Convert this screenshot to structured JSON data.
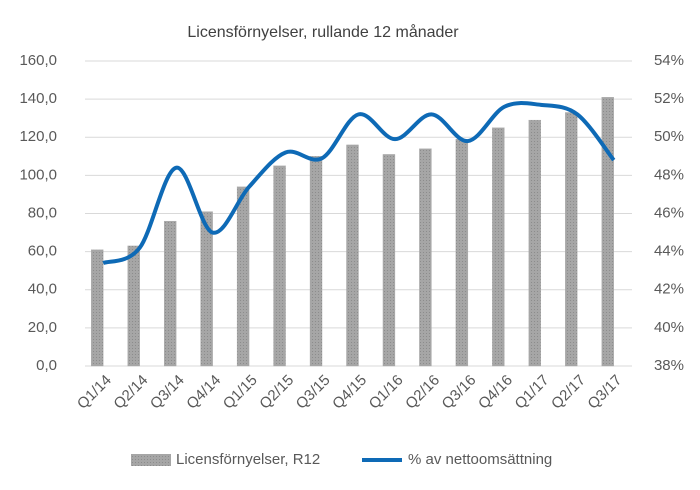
{
  "chart_data": {
    "type": "bar_line",
    "title": "Licensförnyelser, rullande 12 månader",
    "categories": [
      "Q1/14",
      "Q2/14",
      "Q3/14",
      "Q4/14",
      "Q1/15",
      "Q2/15",
      "Q3/15",
      "Q4/15",
      "Q1/16",
      "Q2/16",
      "Q3/16",
      "Q4/16",
      "Q1/17",
      "Q2/17",
      "Q3/17"
    ],
    "series": [
      {
        "name": "Licensförnyelser, R12",
        "type": "bar",
        "color": "#a6a6a6",
        "values": [
          61,
          63,
          76,
          81,
          94,
          105,
          110,
          116,
          111,
          114,
          119,
          125,
          129,
          133,
          141
        ]
      },
      {
        "name": "% av nettoomsättning",
        "type": "line",
        "axis": "y2",
        "color": "#0e6ab6",
        "values": [
          43.4,
          44.2,
          48.4,
          45.0,
          47.4,
          49.2,
          48.9,
          51.2,
          49.9,
          51.2,
          49.8,
          51.6,
          51.7,
          51.2,
          48.8
        ]
      }
    ],
    "ylim": [
      0,
      160
    ],
    "yticks": [
      {
        "value": 0,
        "label": "0,0"
      },
      {
        "value": 20,
        "label": "20,0"
      },
      {
        "value": 40,
        "label": "40,0"
      },
      {
        "value": 60,
        "label": "60,0"
      },
      {
        "value": 80,
        "label": "80,0"
      },
      {
        "value": 100,
        "label": "100,0"
      },
      {
        "value": 120,
        "label": "120,0"
      },
      {
        "value": 140,
        "label": "140,0"
      },
      {
        "value": 160,
        "label": "160,0"
      }
    ],
    "y2lim": [
      38,
      54
    ],
    "y2ticks": [
      {
        "value": 38,
        "label": "38%"
      },
      {
        "value": 40,
        "label": "40%"
      },
      {
        "value": 42,
        "label": "42%"
      },
      {
        "value": 44,
        "label": "44%"
      },
      {
        "value": 46,
        "label": "46%"
      },
      {
        "value": 48,
        "label": "48%"
      },
      {
        "value": 50,
        "label": "50%"
      },
      {
        "value": 52,
        "label": "52%"
      },
      {
        "value": 54,
        "label": "54%"
      }
    ],
    "grid": true,
    "legend": "bottom"
  }
}
